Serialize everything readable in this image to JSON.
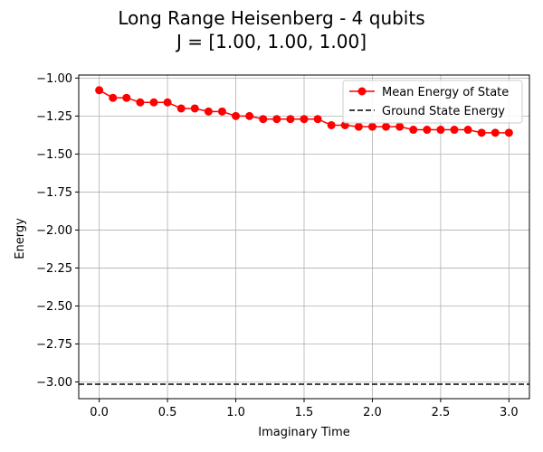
{
  "chart_data": {
    "type": "line",
    "title": "Long Range Heisenberg - 4 qubits",
    "subtitle": "J = [1.00, 1.00, 1.00]",
    "xlabel": "Imaginary Time",
    "ylabel": "Energy",
    "xlim": [
      -0.15,
      3.15
    ],
    "ylim": [
      -3.11,
      -0.98
    ],
    "xticks": [
      0.0,
      0.5,
      1.0,
      1.5,
      2.0,
      2.5,
      3.0
    ],
    "xtick_labels": [
      "0.0",
      "0.5",
      "1.0",
      "1.5",
      "2.0",
      "2.5",
      "3.0"
    ],
    "yticks": [
      -1.0,
      -1.25,
      -1.5,
      -1.75,
      -2.0,
      -2.25,
      -2.5,
      -2.75,
      -3.0
    ],
    "ytick_labels": [
      "−1.00",
      "−1.25",
      "−1.50",
      "−1.75",
      "−2.00",
      "−2.25",
      "−2.50",
      "−2.75",
      "−3.00"
    ],
    "grid": true,
    "legend_position": "top-right",
    "x": [
      0.0,
      0.1,
      0.2,
      0.3,
      0.4,
      0.5,
      0.6,
      0.7,
      0.8,
      0.9,
      1.0,
      1.1,
      1.2,
      1.3,
      1.4,
      1.5,
      1.6,
      1.7,
      1.8,
      1.9,
      2.0,
      2.1,
      2.2,
      2.3,
      2.4,
      2.5,
      2.6,
      2.7,
      2.8,
      2.9,
      3.0
    ],
    "series": [
      {
        "name": "Mean Energy of State",
        "color": "#ff0000",
        "style": "solid-line-with-circle-markers",
        "values": [
          -1.08,
          -1.13,
          -1.13,
          -1.16,
          -1.16,
          -1.16,
          -1.2,
          -1.2,
          -1.22,
          -1.22,
          -1.25,
          -1.25,
          -1.27,
          -1.27,
          -1.27,
          -1.27,
          -1.27,
          -1.31,
          -1.31,
          -1.32,
          -1.32,
          -1.32,
          -1.32,
          -1.34,
          -1.34,
          -1.34,
          -1.34,
          -1.34,
          -1.36,
          -1.36,
          -1.36
        ]
      },
      {
        "name": "Ground State Energy",
        "color": "#000000",
        "style": "dashed-horizontal-line",
        "constant": -3.0146
      }
    ]
  }
}
